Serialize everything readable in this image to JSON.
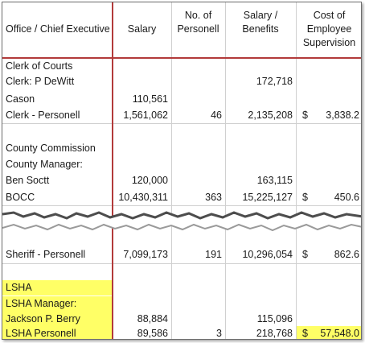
{
  "header": {
    "office": "Office / Chief Executive",
    "salary": "Salary",
    "personnel": "No. of Personell",
    "salary_benefits": "Salary / Benefits",
    "cost_supervision": "Cost of Employee Supervision"
  },
  "rows": [
    {
      "office": "Clerk of Courts",
      "salary": "",
      "personnel": "",
      "benefits": "",
      "dollar": "",
      "cost": ""
    },
    {
      "office": "Clerk: P DeWitt",
      "salary": "",
      "personnel": "",
      "benefits": "172,718",
      "dollar": "",
      "cost": ""
    },
    {
      "office": "Cason",
      "salary": "110,561",
      "personnel": "",
      "benefits": "",
      "dollar": "",
      "cost": ""
    },
    {
      "office": "Clerk - Personell",
      "salary": "1,561,062",
      "personnel": "46",
      "benefits": "2,135,208",
      "dollar": "$",
      "cost": "3,838.2"
    },
    {
      "office": "",
      "salary": "",
      "personnel": "",
      "benefits": "",
      "dollar": "",
      "cost": ""
    },
    {
      "office": "County Commission",
      "salary": "",
      "personnel": "",
      "benefits": "",
      "dollar": "",
      "cost": ""
    },
    {
      "office": "County Manager:",
      "salary": "",
      "personnel": "",
      "benefits": "",
      "dollar": "",
      "cost": ""
    },
    {
      "office": "Ben Soctt",
      "salary": "120,000",
      "personnel": "",
      "benefits": "163,115",
      "dollar": "",
      "cost": ""
    },
    {
      "office": "BOCC",
      "salary": "10,430,311",
      "personnel": "363",
      "benefits": "15,225,127",
      "dollar": "$",
      "cost": "450.6"
    },
    {
      "office": "Sheriff - Personell",
      "salary": "7,099,173",
      "personnel": "191",
      "benefits": "10,296,054",
      "dollar": "$",
      "cost": "862.6"
    },
    {
      "office": "",
      "salary": "",
      "personnel": "",
      "benefits": "",
      "dollar": "",
      "cost": ""
    },
    {
      "office": "LSHA",
      "salary": "",
      "personnel": "",
      "benefits": "",
      "dollar": "",
      "cost": ""
    },
    {
      "office": "LSHA Manager:",
      "salary": "",
      "personnel": "",
      "benefits": "",
      "dollar": "",
      "cost": ""
    },
    {
      "office": "Jackson P. Berry",
      "salary": "88,884",
      "personnel": "",
      "benefits": "115,096",
      "dollar": "",
      "cost": ""
    },
    {
      "office": "LSHA Personell",
      "salary": "89,586",
      "personnel": "3",
      "benefits": "218,768",
      "dollar": "$",
      "cost": "57,548.0"
    }
  ],
  "highlight_color": "#ffff66",
  "header_rule_color": "#b23a3a"
}
